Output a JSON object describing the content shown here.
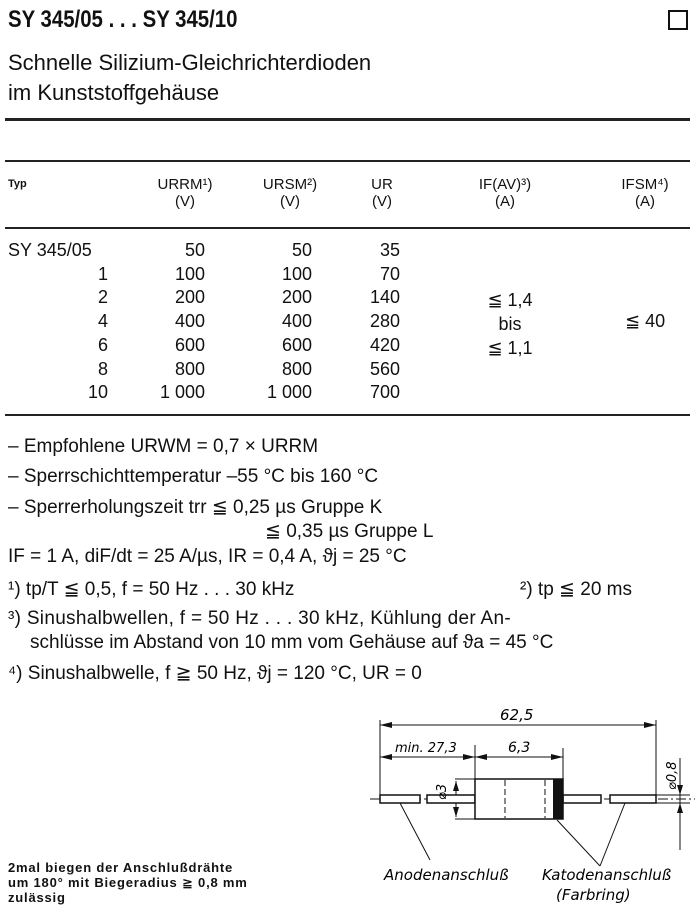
{
  "header": {
    "title": "SY 345/05 . . . SY 345/10",
    "subtitle_line1": "Schnelle Silizium-Gleichrichterdioden",
    "subtitle_line2": "im Kunststoffgehäuse"
  },
  "table": {
    "columns": [
      {
        "label": "Typ",
        "unit": ""
      },
      {
        "label": "URRM¹)",
        "unit": "(V)"
      },
      {
        "label": "URSM²)",
        "unit": "(V)"
      },
      {
        "label": "UR",
        "unit": "(V)"
      },
      {
        "label": "IF(AV)³)",
        "unit": "(A)"
      },
      {
        "label": "IFSM⁴)",
        "unit": "(A)"
      }
    ],
    "rows": [
      {
        "typ": "SY 345/05",
        "urrm": "50",
        "ursm": "50",
        "ur": "35"
      },
      {
        "typ": "1",
        "urrm": "100",
        "ursm": "100",
        "ur": "70"
      },
      {
        "typ": "2",
        "urrm": "200",
        "ursm": "200",
        "ur": "140"
      },
      {
        "typ": "4",
        "urrm": "400",
        "ursm": "400",
        "ur": "280"
      },
      {
        "typ": "6",
        "urrm": "600",
        "ursm": "600",
        "ur": "420"
      },
      {
        "typ": "8",
        "urrm": "800",
        "ursm": "800",
        "ur": "560"
      },
      {
        "typ": "10",
        "urrm": "1 000",
        "ursm": "1 000",
        "ur": "700"
      }
    ],
    "if_av": [
      "≦ 1,4",
      "bis",
      "≦ 1,1"
    ],
    "ifsm": "≦ 40"
  },
  "notes": [
    "– Empfohlene URWM = 0,7 × URRM",
    "– Sperrschichttemperatur –55 °C bis 160 °C",
    "– Sperrerholungszeit trr ≦ 0,25 µs Gruppe K",
    "≦ 0,35 µs Gruppe L",
    "IF = 1 A, diF/dt = 25 A/µs, IR = 0,4 A, ϑj = 25 °C",
    "¹) tp/T ≦ 0,5, f = 50 Hz . . . 30 kHz",
    "²) tp ≦ 20 ms",
    "³) Sinushalbwellen,  f = 50 Hz . . . 30 kHz,  Kühlung  der  An-",
    "schlüsse im Abstand von 10 mm vom Gehäuse auf ϑa = 45 °C",
    "⁴) Sinushalbwelle, f ≧ 50 Hz, ϑj = 120 °C, UR = 0"
  ],
  "drawing": {
    "dim_total": "62,5",
    "dim_lead": "min. 27,3",
    "dim_body": "6,3",
    "dim_body_dia": "⌀3",
    "dim_lead_dia": "⌀0,8",
    "anode_label": "Anodenanschluß",
    "cathode_label": "Katodenanschluß",
    "cathode_note": "(Farbring)"
  },
  "bend_note": [
    "2mal biegen der Anschlußdrähte",
    "um 180° mit Biegeradius ≧ 0,8 mm",
    "zulässig"
  ]
}
